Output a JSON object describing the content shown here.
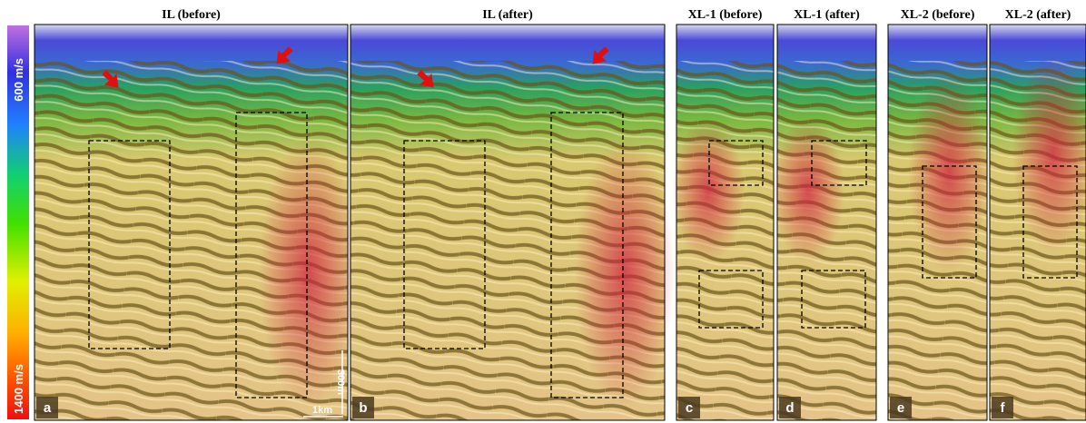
{
  "colorbar": {
    "top_label": "600 m/s",
    "bottom_label": "1400 m/s"
  },
  "panels": [
    {
      "title": "IL (before)",
      "label": "a"
    },
    {
      "title": "IL (after)",
      "label": "b"
    },
    {
      "title": "XL-1 (before)",
      "label": "c"
    },
    {
      "title": "XL-1 (after)",
      "label": "d"
    },
    {
      "title": "XL-2 (before)",
      "label": "e"
    },
    {
      "title": "XL-2 (after)",
      "label": "f"
    }
  ],
  "scale_bar": {
    "vertical": "300m",
    "horizontal": "1km"
  }
}
